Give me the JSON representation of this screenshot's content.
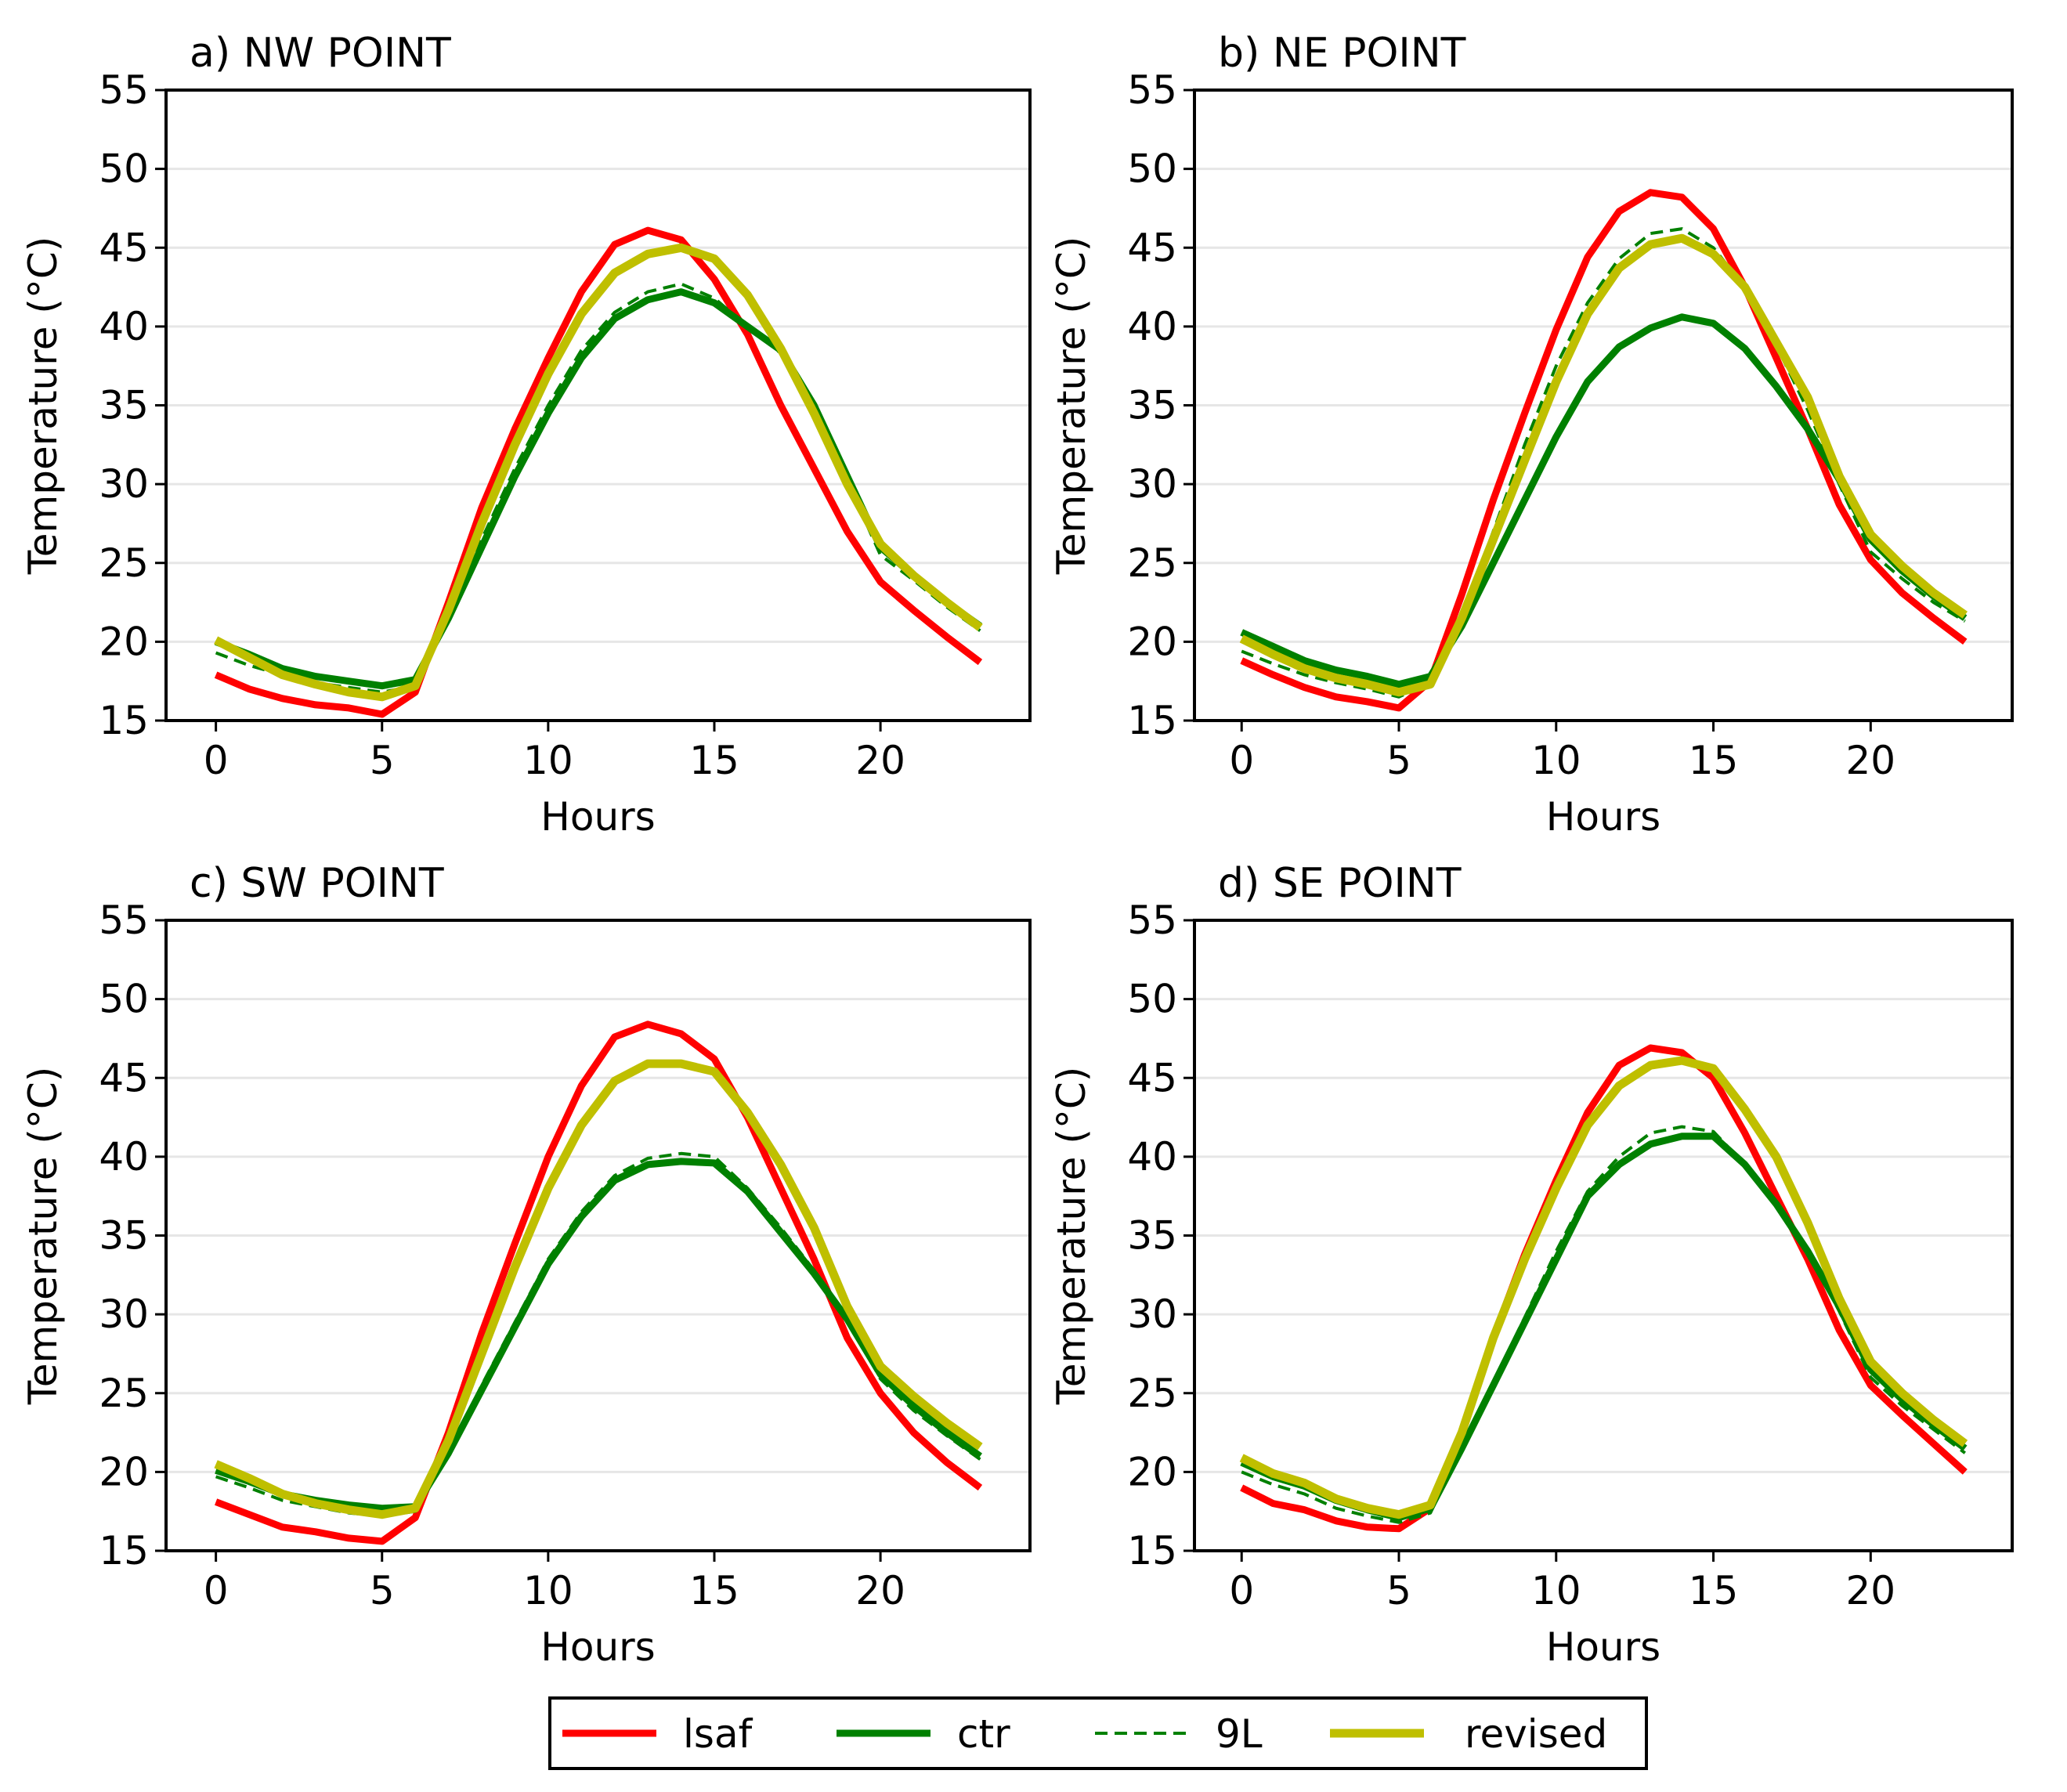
{
  "colors": {
    "lsaf": "#ff0000",
    "ctr": "#008000",
    "9L": "#008000",
    "revised": "#bfbf00",
    "grid": "#e6e6e6"
  },
  "legend": {
    "placement": "bottom-center",
    "entries": [
      {
        "key": "lsaf",
        "label": "lsaf",
        "style": "solid"
      },
      {
        "key": "ctr",
        "label": "ctr",
        "style": "solid"
      },
      {
        "key": "9L",
        "label": "9L",
        "style": "dashed"
      },
      {
        "key": "revised",
        "label": "revised",
        "style": "solid"
      }
    ]
  },
  "chart_data": [
    {
      "type": "line",
      "title": "a) NW POINT",
      "xlabel": "Hours",
      "ylabel": "Temperature (°C)",
      "xlim": [
        -1.5,
        24.5
      ],
      "ylim": [
        15,
        55
      ],
      "xticks": [
        0,
        5,
        10,
        15,
        20
      ],
      "yticks": [
        15,
        20,
        25,
        30,
        35,
        40,
        45,
        50,
        55
      ],
      "grid": "horizontal",
      "x": [
        0,
        1,
        2,
        3,
        4,
        5,
        6,
        7,
        8,
        9,
        10,
        11,
        12,
        13,
        14,
        15,
        16,
        17,
        18,
        19,
        20,
        21,
        22,
        23
      ],
      "series": [
        {
          "name": "lsaf",
          "values": [
            17.9,
            17.0,
            16.4,
            16.0,
            15.8,
            15.4,
            16.8,
            22.5,
            28.5,
            33.5,
            38.0,
            42.2,
            45.2,
            46.1,
            45.5,
            43.0,
            39.5,
            35.0,
            31.0,
            27.0,
            23.8,
            22.0,
            20.3,
            18.7
          ]
        },
        {
          "name": "ctr",
          "values": [
            20.0,
            19.2,
            18.3,
            17.8,
            17.5,
            17.2,
            17.6,
            21.5,
            26.0,
            30.5,
            34.5,
            38.0,
            40.5,
            41.7,
            42.2,
            41.5,
            40.0,
            38.5,
            35.0,
            30.5,
            26.0,
            24.2,
            22.5,
            21.0
          ]
        },
        {
          "name": "9L",
          "values": [
            19.3,
            18.5,
            17.9,
            17.4,
            17.1,
            16.8,
            17.2,
            21.5,
            26.5,
            31.0,
            35.0,
            38.5,
            40.9,
            42.2,
            42.7,
            41.8,
            40.0,
            38.3,
            34.6,
            30.2,
            25.5,
            23.9,
            22.2,
            20.7
          ]
        },
        {
          "name": "revised",
          "values": [
            20.1,
            19.0,
            17.9,
            17.3,
            16.8,
            16.5,
            17.2,
            22.0,
            27.5,
            32.5,
            37.0,
            40.8,
            43.4,
            44.6,
            45.0,
            44.3,
            42.0,
            38.6,
            34.5,
            30.0,
            26.2,
            24.2,
            22.5,
            20.9
          ]
        }
      ]
    },
    {
      "type": "line",
      "title": "b) NE POINT",
      "xlabel": "Hours",
      "ylabel": "Temperature (°C)",
      "xlim": [
        -1.5,
        24.5
      ],
      "ylim": [
        15,
        55
      ],
      "xticks": [
        0,
        5,
        10,
        15,
        20
      ],
      "yticks": [
        15,
        20,
        25,
        30,
        35,
        40,
        45,
        50,
        55
      ],
      "grid": "horizontal",
      "x": [
        0,
        1,
        2,
        3,
        4,
        5,
        6,
        7,
        8,
        9,
        10,
        11,
        12,
        13,
        14,
        15,
        16,
        17,
        18,
        19,
        20,
        21,
        22,
        23
      ],
      "series": [
        {
          "name": "lsaf",
          "values": [
            18.8,
            17.9,
            17.1,
            16.5,
            16.2,
            15.8,
            17.5,
            23.0,
            29.0,
            34.5,
            39.8,
            44.4,
            47.3,
            48.5,
            48.2,
            46.2,
            42.5,
            38.0,
            33.5,
            28.7,
            25.2,
            23.1,
            21.5,
            20.0
          ]
        },
        {
          "name": "ctr",
          "values": [
            20.6,
            19.7,
            18.8,
            18.2,
            17.8,
            17.3,
            17.8,
            21.0,
            25.0,
            29.0,
            33.0,
            36.5,
            38.7,
            39.9,
            40.6,
            40.2,
            38.6,
            36.2,
            33.5,
            30.3,
            26.5,
            24.5,
            22.9,
            21.5
          ]
        },
        {
          "name": "9L",
          "values": [
            19.4,
            18.6,
            17.9,
            17.4,
            17.0,
            16.5,
            17.4,
            21.5,
            27.0,
            32.5,
            37.5,
            41.5,
            44.3,
            45.9,
            46.2,
            45.0,
            42.5,
            38.8,
            34.7,
            30.0,
            25.7,
            24.0,
            22.5,
            21.3
          ]
        },
        {
          "name": "revised",
          "values": [
            20.2,
            19.2,
            18.3,
            17.7,
            17.3,
            16.8,
            17.3,
            21.5,
            26.5,
            31.5,
            36.5,
            40.8,
            43.7,
            45.2,
            45.6,
            44.6,
            42.5,
            39.0,
            35.5,
            30.5,
            26.8,
            24.8,
            23.1,
            21.7
          ]
        }
      ]
    },
    {
      "type": "line",
      "title": "c) SW POINT",
      "xlabel": "Hours",
      "ylabel": "Temperature (°C)",
      "xlim": [
        -1.5,
        24.5
      ],
      "ylim": [
        15,
        55
      ],
      "xticks": [
        0,
        5,
        10,
        15,
        20
      ],
      "yticks": [
        15,
        20,
        25,
        30,
        35,
        40,
        45,
        50,
        55
      ],
      "grid": "horizontal",
      "x": [
        0,
        1,
        2,
        3,
        4,
        5,
        6,
        7,
        8,
        9,
        10,
        11,
        12,
        13,
        14,
        15,
        16,
        17,
        18,
        19,
        20,
        21,
        22,
        23
      ],
      "series": [
        {
          "name": "lsaf",
          "values": [
            18.1,
            17.3,
            16.5,
            16.2,
            15.8,
            15.6,
            17.1,
            22.5,
            28.8,
            34.5,
            40.0,
            44.5,
            47.6,
            48.4,
            47.8,
            46.2,
            42.5,
            38.0,
            33.5,
            28.5,
            25.0,
            22.5,
            20.6,
            19.0
          ]
        },
        {
          "name": "ctr",
          "values": [
            20.1,
            19.4,
            18.6,
            18.2,
            17.9,
            17.7,
            17.8,
            21.2,
            25.2,
            29.2,
            33.2,
            36.2,
            38.5,
            39.5,
            39.7,
            39.6,
            37.8,
            35.2,
            32.6,
            29.7,
            26.2,
            24.2,
            22.5,
            21.0
          ]
        },
        {
          "name": "9L",
          "values": [
            19.7,
            19.0,
            18.2,
            17.8,
            17.4,
            17.2,
            17.5,
            21.2,
            25.5,
            29.5,
            33.5,
            36.5,
            38.8,
            39.9,
            40.2,
            40.0,
            38.0,
            35.5,
            32.8,
            29.8,
            25.9,
            23.9,
            22.3,
            20.8
          ]
        },
        {
          "name": "revised",
          "values": [
            20.5,
            19.6,
            18.6,
            18.0,
            17.6,
            17.3,
            17.7,
            22.0,
            27.5,
            33.0,
            38.0,
            42.0,
            44.8,
            45.9,
            45.9,
            45.4,
            42.8,
            39.5,
            35.5,
            30.5,
            26.7,
            24.8,
            23.1,
            21.6
          ]
        }
      ]
    },
    {
      "type": "line",
      "title": "d) SE POINT",
      "xlabel": "Hours",
      "ylabel": "Temperature (°C)",
      "xlim": [
        -1.5,
        24.5
      ],
      "ylim": [
        15,
        55
      ],
      "xticks": [
        0,
        5,
        10,
        15,
        20
      ],
      "yticks": [
        15,
        20,
        25,
        30,
        35,
        40,
        45,
        50,
        55
      ],
      "grid": "horizontal",
      "x": [
        0,
        1,
        2,
        3,
        4,
        5,
        6,
        7,
        8,
        9,
        10,
        11,
        12,
        13,
        14,
        15,
        16,
        17,
        18,
        19,
        20,
        21,
        22,
        23
      ],
      "series": [
        {
          "name": "lsaf",
          "values": [
            19.0,
            18.0,
            17.6,
            16.9,
            16.5,
            16.4,
            17.7,
            22.5,
            28.5,
            33.8,
            38.5,
            42.8,
            45.8,
            46.9,
            46.6,
            45.0,
            41.5,
            37.5,
            33.5,
            29.0,
            25.5,
            23.6,
            21.8,
            20.0
          ]
        },
        {
          "name": "ctr",
          "values": [
            20.6,
            19.7,
            19.1,
            18.2,
            17.6,
            17.1,
            17.7,
            21.5,
            25.5,
            29.5,
            33.5,
            37.5,
            39.5,
            40.8,
            41.3,
            41.3,
            39.5,
            37.0,
            34.0,
            30.5,
            26.5,
            24.6,
            23.0,
            21.5
          ]
        },
        {
          "name": "9L",
          "values": [
            20.0,
            19.2,
            18.6,
            17.7,
            17.2,
            16.8,
            17.4,
            21.5,
            25.7,
            29.8,
            34.0,
            37.8,
            40.0,
            41.5,
            41.9,
            41.6,
            39.5,
            37.0,
            34.0,
            30.2,
            26.0,
            24.2,
            22.7,
            21.2
          ]
        },
        {
          "name": "revised",
          "values": [
            20.9,
            19.9,
            19.3,
            18.3,
            17.7,
            17.3,
            17.9,
            22.5,
            28.5,
            33.5,
            38.0,
            42.0,
            44.5,
            45.8,
            46.1,
            45.6,
            43.0,
            40.0,
            35.8,
            31.0,
            27.0,
            25.0,
            23.3,
            21.8
          ]
        }
      ]
    }
  ]
}
